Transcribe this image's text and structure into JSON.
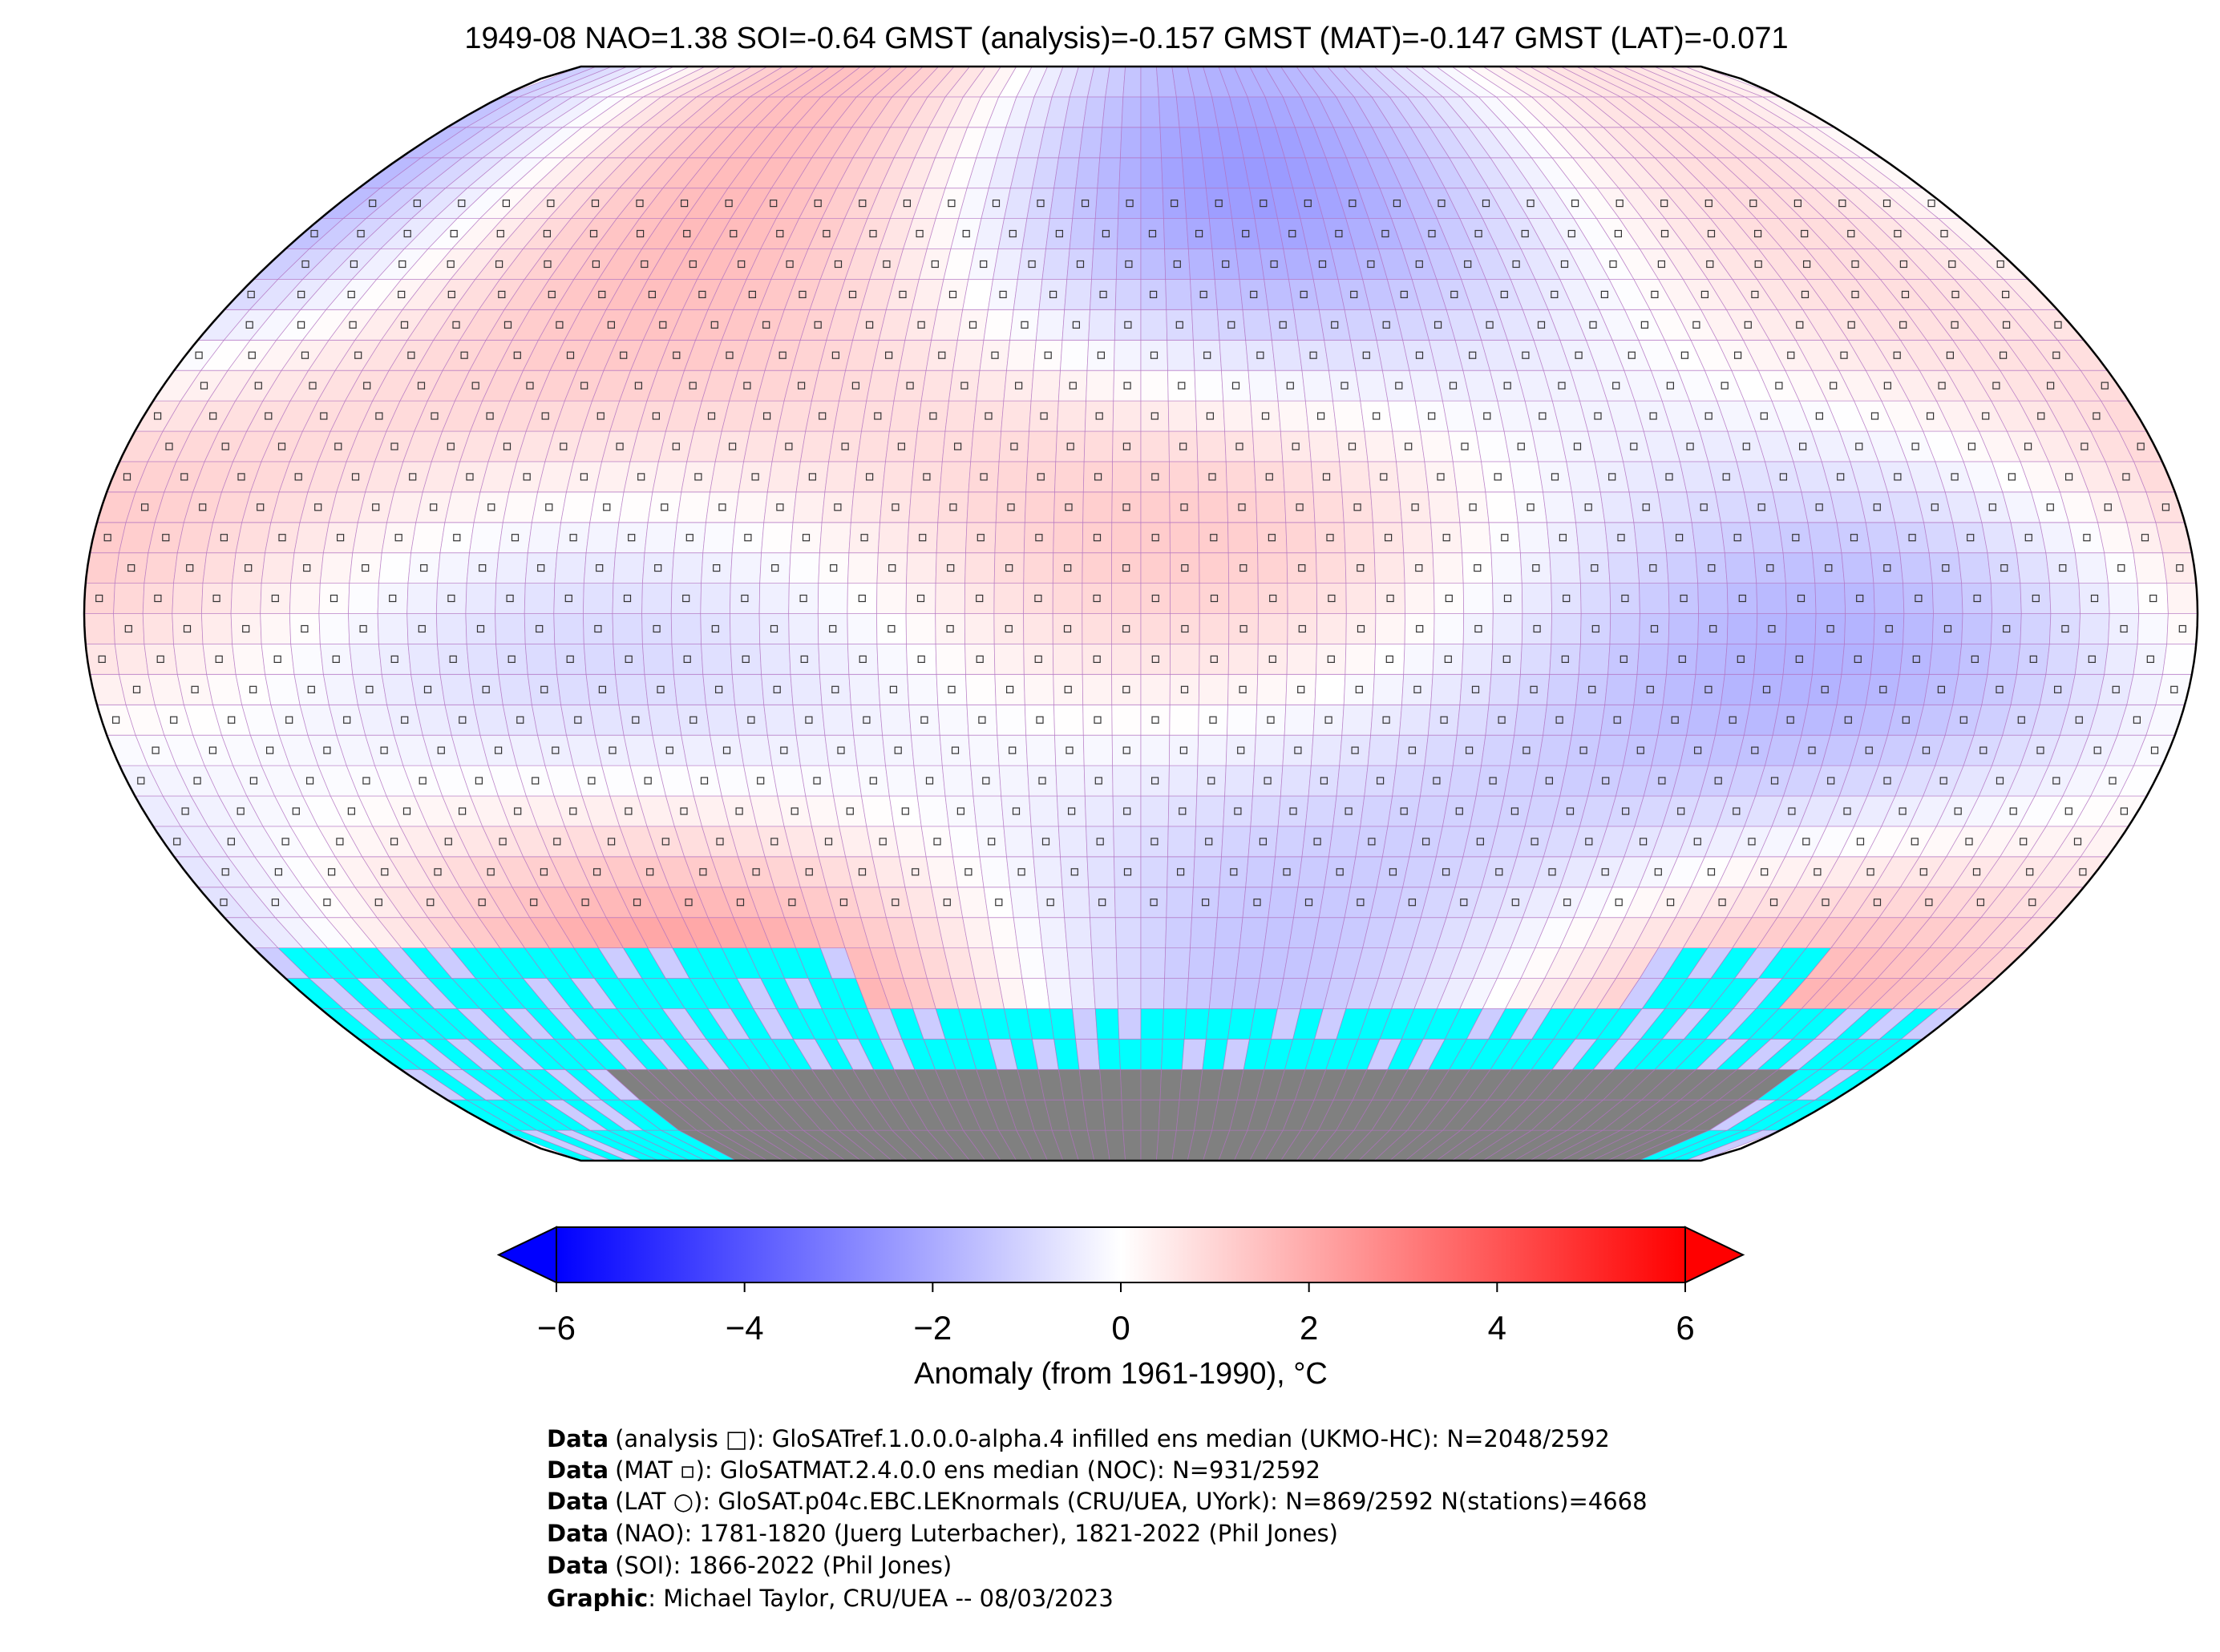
{
  "title": "1949-08 NAO=1.38 SOI=-0.64 GMST (analysis)=-0.157 GMST (MAT)=-0.147 GMST (LAT)=-0.071",
  "colorbar": {
    "label": "Anomaly (from 1961-1990), °C",
    "lim": [
      -6,
      6
    ],
    "ticks": [
      {
        "value": -6,
        "label": "−6"
      },
      {
        "value": -4,
        "label": "−4"
      },
      {
        "value": -2,
        "label": "−2"
      },
      0,
      2,
      4,
      6
    ],
    "colormap": [
      "#0000ff",
      "#ffffff",
      "#ff0000"
    ]
  },
  "credits": [
    {
      "label": "Data",
      "text": "(analysis □): GloSATref.1.0.0.0-alpha.4 infilled ens median (UKMO-HC): N=2048/2592"
    },
    {
      "label": "Data",
      "text": "(MAT ▫): GloSATMAT.2.4.0.0 ens median (NOC): N=931/2592"
    },
    {
      "label": "Data",
      "text": "(LAT ○): GloSAT.p04c.EBC.LEKnormals (CRU/UEA, UYork): N=869/2592 N(stations)=4668"
    },
    {
      "label": "Data",
      "text": "(NAO): 1781-1820 (Juerg Luterbacher), 1821-2022 (Phil Jones)"
    },
    {
      "label": "Data",
      "text": "(SOI): 1866-2022 (Phil Jones)"
    },
    {
      "label": "Graphic",
      "text": ": Michael Taylor, CRU/UEA -- 08/03/2023"
    }
  ]
}
